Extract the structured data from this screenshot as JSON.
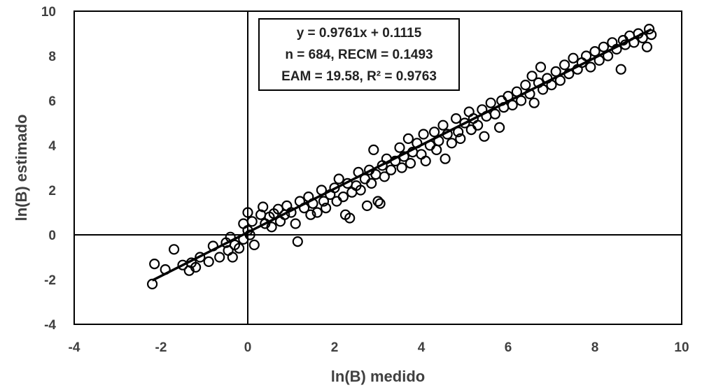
{
  "chart_data": {
    "type": "scatter",
    "title": "",
    "xlabel": "ln(B) medido",
    "ylabel": "ln(B) estimado",
    "xlim": [
      -4,
      10
    ],
    "ylim": [
      -4,
      10
    ],
    "x_ticks": [
      "-4",
      "-2",
      "0",
      "2",
      "4",
      "6",
      "8",
      "10"
    ],
    "y_ticks": [
      "-4",
      "-2",
      "0",
      "2",
      "4",
      "6",
      "8",
      "10"
    ],
    "grid": false,
    "marker": "open-circle",
    "trendline": {
      "slope": 0.9761,
      "intercept": 0.1115,
      "x_range": [
        -2.2,
        9.3
      ]
    },
    "annotation": {
      "lines": [
        "y = 0.9761x + 0.1115",
        "n = 684, RECM = 0.1493",
        "EAM = 19.58, R² = 0.9763"
      ]
    },
    "n": 684,
    "points": [
      [
        -2.2,
        -2.2
      ],
      [
        -2.15,
        -1.3
      ],
      [
        -1.9,
        -1.55
      ],
      [
        -1.7,
        -0.65
      ],
      [
        -1.5,
        -1.35
      ],
      [
        -1.35,
        -1.6
      ],
      [
        -1.3,
        -1.25
      ],
      [
        -1.2,
        -1.45
      ],
      [
        -1.1,
        -1.0
      ],
      [
        -0.9,
        -1.2
      ],
      [
        -0.8,
        -0.5
      ],
      [
        -0.65,
        -1.0
      ],
      [
        -0.5,
        -0.35
      ],
      [
        -0.45,
        -0.7
      ],
      [
        -0.4,
        -0.1
      ],
      [
        -0.35,
        -1.0
      ],
      [
        -0.3,
        -0.45
      ],
      [
        -0.2,
        -0.6
      ],
      [
        -0.1,
        -0.2
      ],
      [
        0.0,
        0.2
      ],
      [
        -0.1,
        0.5
      ],
      [
        0.0,
        1.0
      ],
      [
        0.05,
        0.0
      ],
      [
        0.1,
        0.6
      ],
      [
        0.15,
        -0.45
      ],
      [
        0.3,
        0.9
      ],
      [
        0.35,
        1.25
      ],
      [
        0.4,
        0.5
      ],
      [
        0.5,
        0.8
      ],
      [
        0.55,
        0.35
      ],
      [
        0.6,
        0.95
      ],
      [
        0.7,
        1.15
      ],
      [
        0.75,
        0.6
      ],
      [
        0.85,
        0.9
      ],
      [
        0.9,
        1.3
      ],
      [
        1.0,
        1.0
      ],
      [
        1.1,
        0.5
      ],
      [
        1.15,
        -0.3
      ],
      [
        1.2,
        1.5
      ],
      [
        1.3,
        1.2
      ],
      [
        1.4,
        1.7
      ],
      [
        1.45,
        0.9
      ],
      [
        1.5,
        1.4
      ],
      [
        1.6,
        1.0
      ],
      [
        1.7,
        2.0
      ],
      [
        1.75,
        1.5
      ],
      [
        1.8,
        1.2
      ],
      [
        1.9,
        1.8
      ],
      [
        2.0,
        2.1
      ],
      [
        2.05,
        1.5
      ],
      [
        2.1,
        2.5
      ],
      [
        2.2,
        1.7
      ],
      [
        2.25,
        0.9
      ],
      [
        2.3,
        2.3
      ],
      [
        2.35,
        0.75
      ],
      [
        2.4,
        1.9
      ],
      [
        2.5,
        2.2
      ],
      [
        2.55,
        2.8
      ],
      [
        2.6,
        2.0
      ],
      [
        2.7,
        2.5
      ],
      [
        2.75,
        1.3
      ],
      [
        2.8,
        2.9
      ],
      [
        2.85,
        2.3
      ],
      [
        2.9,
        3.8
      ],
      [
        2.95,
        2.7
      ],
      [
        3.0,
        1.5
      ],
      [
        3.05,
        1.4
      ],
      [
        3.1,
        3.1
      ],
      [
        3.15,
        2.6
      ],
      [
        3.2,
        3.4
      ],
      [
        3.3,
        2.9
      ],
      [
        3.4,
        3.3
      ],
      [
        3.5,
        3.9
      ],
      [
        3.55,
        3.0
      ],
      [
        3.6,
        3.5
      ],
      [
        3.7,
        4.3
      ],
      [
        3.75,
        3.2
      ],
      [
        3.8,
        3.7
      ],
      [
        3.9,
        4.1
      ],
      [
        4.0,
        3.6
      ],
      [
        4.05,
        4.5
      ],
      [
        4.1,
        3.3
      ],
      [
        4.2,
        4.0
      ],
      [
        4.3,
        4.6
      ],
      [
        4.35,
        3.8
      ],
      [
        4.4,
        4.2
      ],
      [
        4.5,
        4.9
      ],
      [
        4.55,
        3.4
      ],
      [
        4.6,
        4.5
      ],
      [
        4.7,
        4.1
      ],
      [
        4.8,
        5.2
      ],
      [
        4.85,
        4.6
      ],
      [
        4.9,
        4.3
      ],
      [
        5.0,
        5.0
      ],
      [
        5.1,
        5.5
      ],
      [
        5.15,
        4.7
      ],
      [
        5.2,
        5.2
      ],
      [
        5.3,
        4.9
      ],
      [
        5.4,
        5.6
      ],
      [
        5.45,
        4.4
      ],
      [
        5.5,
        5.3
      ],
      [
        5.6,
        5.9
      ],
      [
        5.7,
        5.4
      ],
      [
        5.8,
        4.8
      ],
      [
        5.85,
        6.0
      ],
      [
        5.9,
        5.7
      ],
      [
        6.0,
        6.2
      ],
      [
        6.1,
        5.8
      ],
      [
        6.2,
        6.4
      ],
      [
        6.3,
        6.0
      ],
      [
        6.4,
        6.7
      ],
      [
        6.5,
        6.3
      ],
      [
        6.55,
        7.1
      ],
      [
        6.6,
        5.9
      ],
      [
        6.7,
        6.8
      ],
      [
        6.75,
        7.5
      ],
      [
        6.8,
        6.5
      ],
      [
        6.9,
        7.0
      ],
      [
        7.0,
        6.7
      ],
      [
        7.1,
        7.3
      ],
      [
        7.2,
        6.9
      ],
      [
        7.3,
        7.6
      ],
      [
        7.4,
        7.2
      ],
      [
        7.5,
        7.9
      ],
      [
        7.6,
        7.4
      ],
      [
        7.7,
        7.7
      ],
      [
        7.8,
        8.0
      ],
      [
        7.9,
        7.5
      ],
      [
        8.0,
        8.2
      ],
      [
        8.1,
        7.8
      ],
      [
        8.2,
        8.4
      ],
      [
        8.3,
        8.0
      ],
      [
        8.4,
        8.6
      ],
      [
        8.5,
        8.3
      ],
      [
        8.6,
        7.4
      ],
      [
        8.65,
        8.7
      ],
      [
        8.7,
        8.5
      ],
      [
        8.8,
        8.9
      ],
      [
        8.9,
        8.6
      ],
      [
        9.0,
        9.0
      ],
      [
        9.1,
        8.8
      ],
      [
        9.2,
        8.4
      ],
      [
        9.25,
        9.2
      ],
      [
        9.3,
        8.95
      ]
    ]
  }
}
